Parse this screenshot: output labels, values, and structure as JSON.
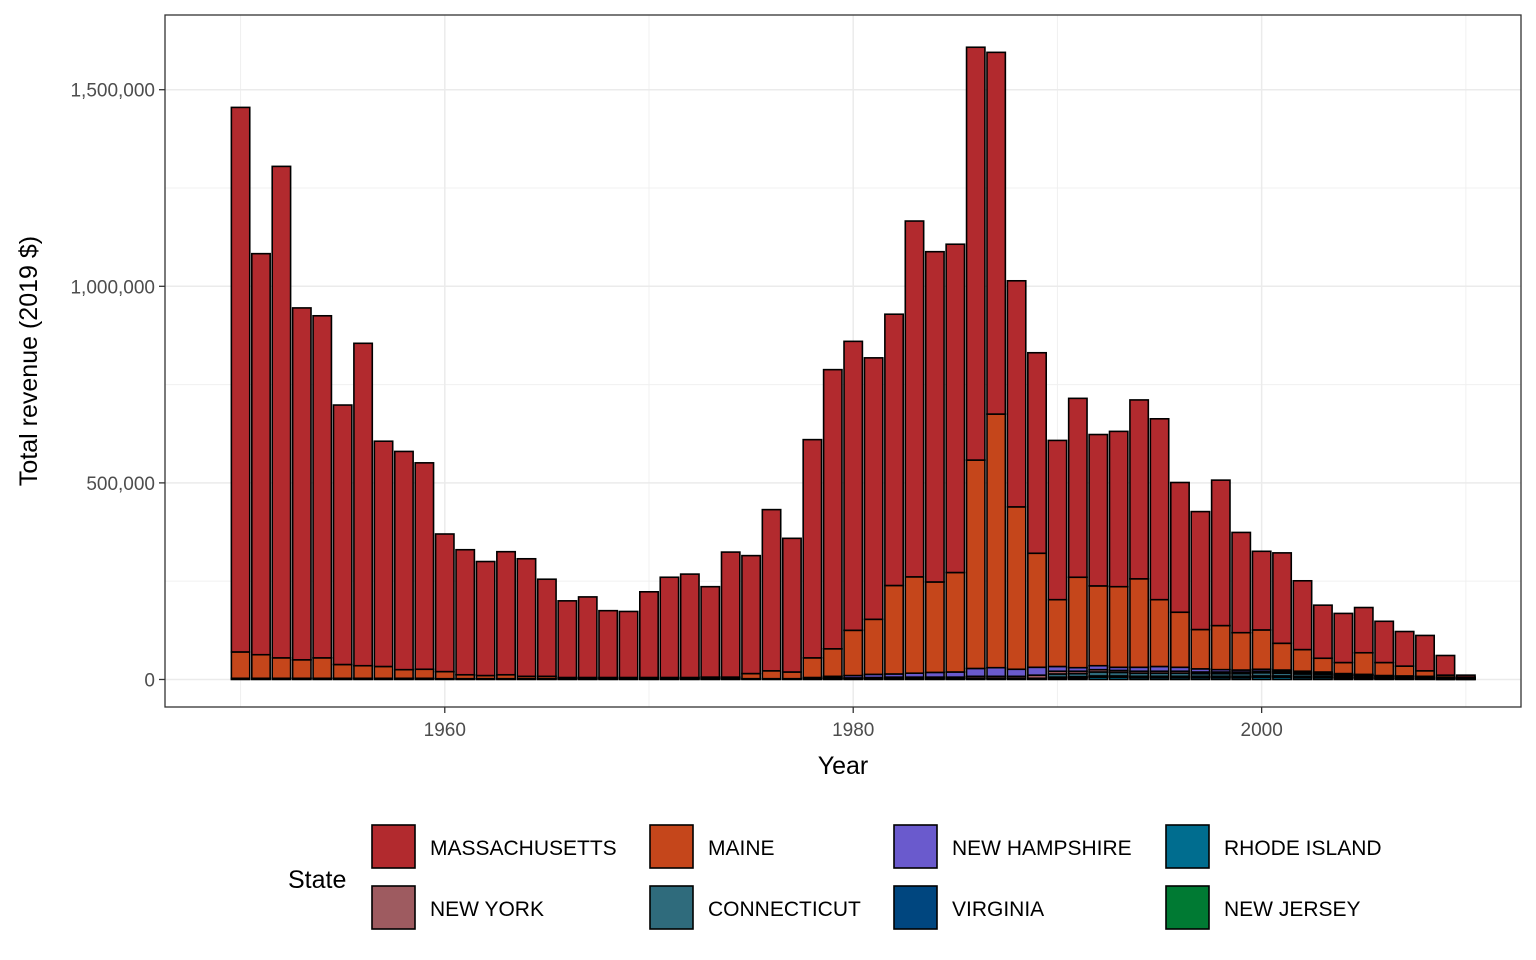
{
  "chart_data": {
    "type": "bar",
    "stacked": true,
    "title": "",
    "xlabel": "Year",
    "ylabel": "Total revenue (2019 $)",
    "xlim": [
      1946.3,
      2012.7
    ],
    "ylim": [
      -70000,
      1690000
    ],
    "x_ticks": [
      1960,
      1980,
      2000
    ],
    "y_ticks": [
      0,
      500000,
      1000000,
      1500000
    ],
    "y_tick_labels": [
      "0",
      "500,000",
      "1,000,000",
      "1,500,000"
    ],
    "grid": true,
    "legend_position": "bottom",
    "legend_title": "State",
    "years": [
      1950,
      1951,
      1952,
      1953,
      1954,
      1955,
      1956,
      1957,
      1958,
      1959,
      1960,
      1961,
      1962,
      1963,
      1964,
      1965,
      1966,
      1967,
      1968,
      1969,
      1970,
      1971,
      1972,
      1973,
      1974,
      1975,
      1976,
      1977,
      1978,
      1979,
      1980,
      1981,
      1982,
      1983,
      1984,
      1985,
      1986,
      1987,
      1988,
      1989,
      1990,
      1991,
      1992,
      1993,
      1994,
      1995,
      1996,
      1997,
      1998,
      1999,
      2000,
      2001,
      2002,
      2003,
      2004,
      2005,
      2006,
      2007,
      2008,
      2009,
      2010
    ],
    "series": [
      {
        "name": "NEW JERSEY",
        "color": "#007A33",
        "values": [
          0,
          0,
          0,
          0,
          0,
          0,
          0,
          0,
          0,
          0,
          0,
          0,
          0,
          0,
          0,
          0,
          0,
          0,
          0,
          0,
          0,
          0,
          0,
          0,
          0,
          0,
          0,
          0,
          0,
          0,
          0,
          0,
          0,
          0,
          0,
          0,
          0,
          0,
          0,
          0,
          0,
          0,
          0,
          0,
          0,
          0,
          0,
          0,
          0,
          0,
          0,
          0,
          0,
          0,
          0,
          0,
          0,
          0,
          0,
          0,
          0
        ]
      },
      {
        "name": "RHODE ISLAND",
        "color": "#006D8F",
        "values": [
          0,
          0,
          0,
          0,
          0,
          0,
          0,
          0,
          0,
          0,
          0,
          0,
          0,
          0,
          0,
          0,
          0,
          0,
          0,
          0,
          0,
          0,
          0,
          0,
          0,
          0,
          0,
          0,
          0,
          0,
          0,
          0,
          0,
          0,
          0,
          0,
          0,
          0,
          0,
          0,
          3000,
          4000,
          6000,
          6000,
          5000,
          5000,
          5000,
          5000,
          5000,
          5000,
          6000,
          6000,
          5000,
          5000,
          4000,
          3000,
          2000,
          2000,
          2000,
          1000,
          1000
        ]
      },
      {
        "name": "VIRGINIA",
        "color": "#00467F",
        "values": [
          3000,
          3000,
          3000,
          3000,
          3000,
          3000,
          3000,
          3000,
          3000,
          3000,
          2000,
          2000,
          2000,
          2000,
          2000,
          2000,
          2000,
          2000,
          2000,
          2000,
          2000,
          2000,
          2000,
          2000,
          2000,
          2000,
          2000,
          2000,
          2000,
          2000,
          2000,
          2000,
          2000,
          2000,
          2000,
          2000,
          3000,
          3000,
          3000,
          3000,
          3000,
          3000,
          3000,
          3000,
          3000,
          3000,
          3000,
          3000,
          3000,
          3000,
          3000,
          3000,
          3000,
          3000,
          2000,
          2000,
          1000,
          1000,
          1000,
          1000,
          1000
        ]
      },
      {
        "name": "CONNECTICUT",
        "color": "#2F6B7C",
        "values": [
          0,
          0,
          0,
          0,
          0,
          0,
          0,
          0,
          0,
          0,
          0,
          0,
          0,
          0,
          0,
          0,
          0,
          0,
          0,
          0,
          0,
          0,
          0,
          0,
          0,
          0,
          0,
          0,
          0,
          0,
          0,
          0,
          0,
          0,
          0,
          0,
          0,
          0,
          0,
          0,
          8000,
          8000,
          10000,
          9000,
          8000,
          8000,
          8000,
          7000,
          7000,
          7000,
          8000,
          7000,
          6000,
          5000,
          4000,
          4000,
          3000,
          3000,
          3000,
          2000,
          1000
        ]
      },
      {
        "name": "NEW YORK",
        "color": "#9E5B60",
        "values": [
          0,
          0,
          0,
          0,
          0,
          0,
          0,
          0,
          0,
          0,
          0,
          0,
          0,
          0,
          0,
          0,
          0,
          0,
          0,
          0,
          0,
          0,
          0,
          0,
          0,
          0,
          0,
          0,
          0,
          2000,
          2000,
          3000,
          4000,
          4000,
          4000,
          4000,
          5000,
          5000,
          5000,
          8000,
          7000,
          6000,
          6000,
          5000,
          5000,
          5000,
          5000,
          4000,
          4000,
          4000,
          4000,
          4000,
          3000,
          3000,
          2000,
          2000,
          2000,
          2000,
          1000,
          1000,
          1000
        ]
      },
      {
        "name": "NEW HAMPSHIRE",
        "color": "#6A5ACD",
        "values": [
          0,
          0,
          0,
          0,
          0,
          0,
          0,
          0,
          0,
          0,
          0,
          0,
          0,
          0,
          0,
          0,
          0,
          0,
          0,
          0,
          0,
          0,
          0,
          0,
          0,
          0,
          0,
          0,
          3000,
          4000,
          6000,
          8000,
          8000,
          10000,
          12000,
          13000,
          20000,
          22000,
          18000,
          20000,
          12000,
          9000,
          10000,
          8000,
          10000,
          12000,
          10000,
          8000,
          6000,
          5000,
          5000,
          4000,
          4000,
          3000,
          3000,
          2000,
          2000,
          1000,
          1000,
          1000,
          1000
        ]
      },
      {
        "name": "MAINE",
        "color": "#C5461B",
        "values": [
          67000,
          60000,
          52000,
          47000,
          52000,
          35000,
          32000,
          30000,
          22000,
          23000,
          18000,
          10000,
          8000,
          10000,
          6000,
          6000,
          3000,
          3000,
          3000,
          3000,
          3000,
          3000,
          3000,
          4000,
          4000,
          13000,
          20000,
          17000,
          50000,
          70000,
          115000,
          140000,
          225000,
          245000,
          230000,
          253000,
          530000,
          645000,
          413000,
          290000,
          170000,
          230000,
          203000,
          205000,
          225000,
          170000,
          140000,
          100000,
          112000,
          95000,
          100000,
          68000,
          55000,
          35000,
          28000,
          55000,
          33000,
          25000,
          14000,
          5000,
          1000
        ]
      },
      {
        "name": "MASSACHUSETTS",
        "color": "#B22A2E",
        "values": [
          1385000,
          1020000,
          1250000,
          895000,
          870000,
          660000,
          820000,
          573000,
          555000,
          525000,
          350000,
          318000,
          290000,
          313000,
          299000,
          247000,
          195000,
          205000,
          170000,
          168000,
          218000,
          255000,
          263000,
          230000,
          318000,
          300000,
          410000,
          340000,
          555000,
          710000,
          735000,
          665000,
          690000,
          905000,
          840000,
          835000,
          1050000,
          920000,
          575000,
          510000,
          405000,
          455000,
          385000,
          395000,
          455000,
          460000,
          330000,
          300000,
          370000,
          255000,
          200000,
          230000,
          175000,
          135000,
          125000,
          115000,
          105000,
          88000,
          90000,
          50000,
          5000
        ]
      }
    ]
  },
  "legend": {
    "title": "State",
    "items": [
      {
        "label": "MASSACHUSETTS",
        "color": "#B22A2E"
      },
      {
        "label": "MAINE",
        "color": "#C5461B"
      },
      {
        "label": "NEW HAMPSHIRE",
        "color": "#6A5ACD"
      },
      {
        "label": "RHODE ISLAND",
        "color": "#006D8F"
      },
      {
        "label": "NEW YORK",
        "color": "#9E5B60"
      },
      {
        "label": "CONNECTICUT",
        "color": "#2F6B7C"
      },
      {
        "label": "VIRGINIA",
        "color": "#00467F"
      },
      {
        "label": "NEW JERSEY",
        "color": "#007A33"
      }
    ]
  }
}
